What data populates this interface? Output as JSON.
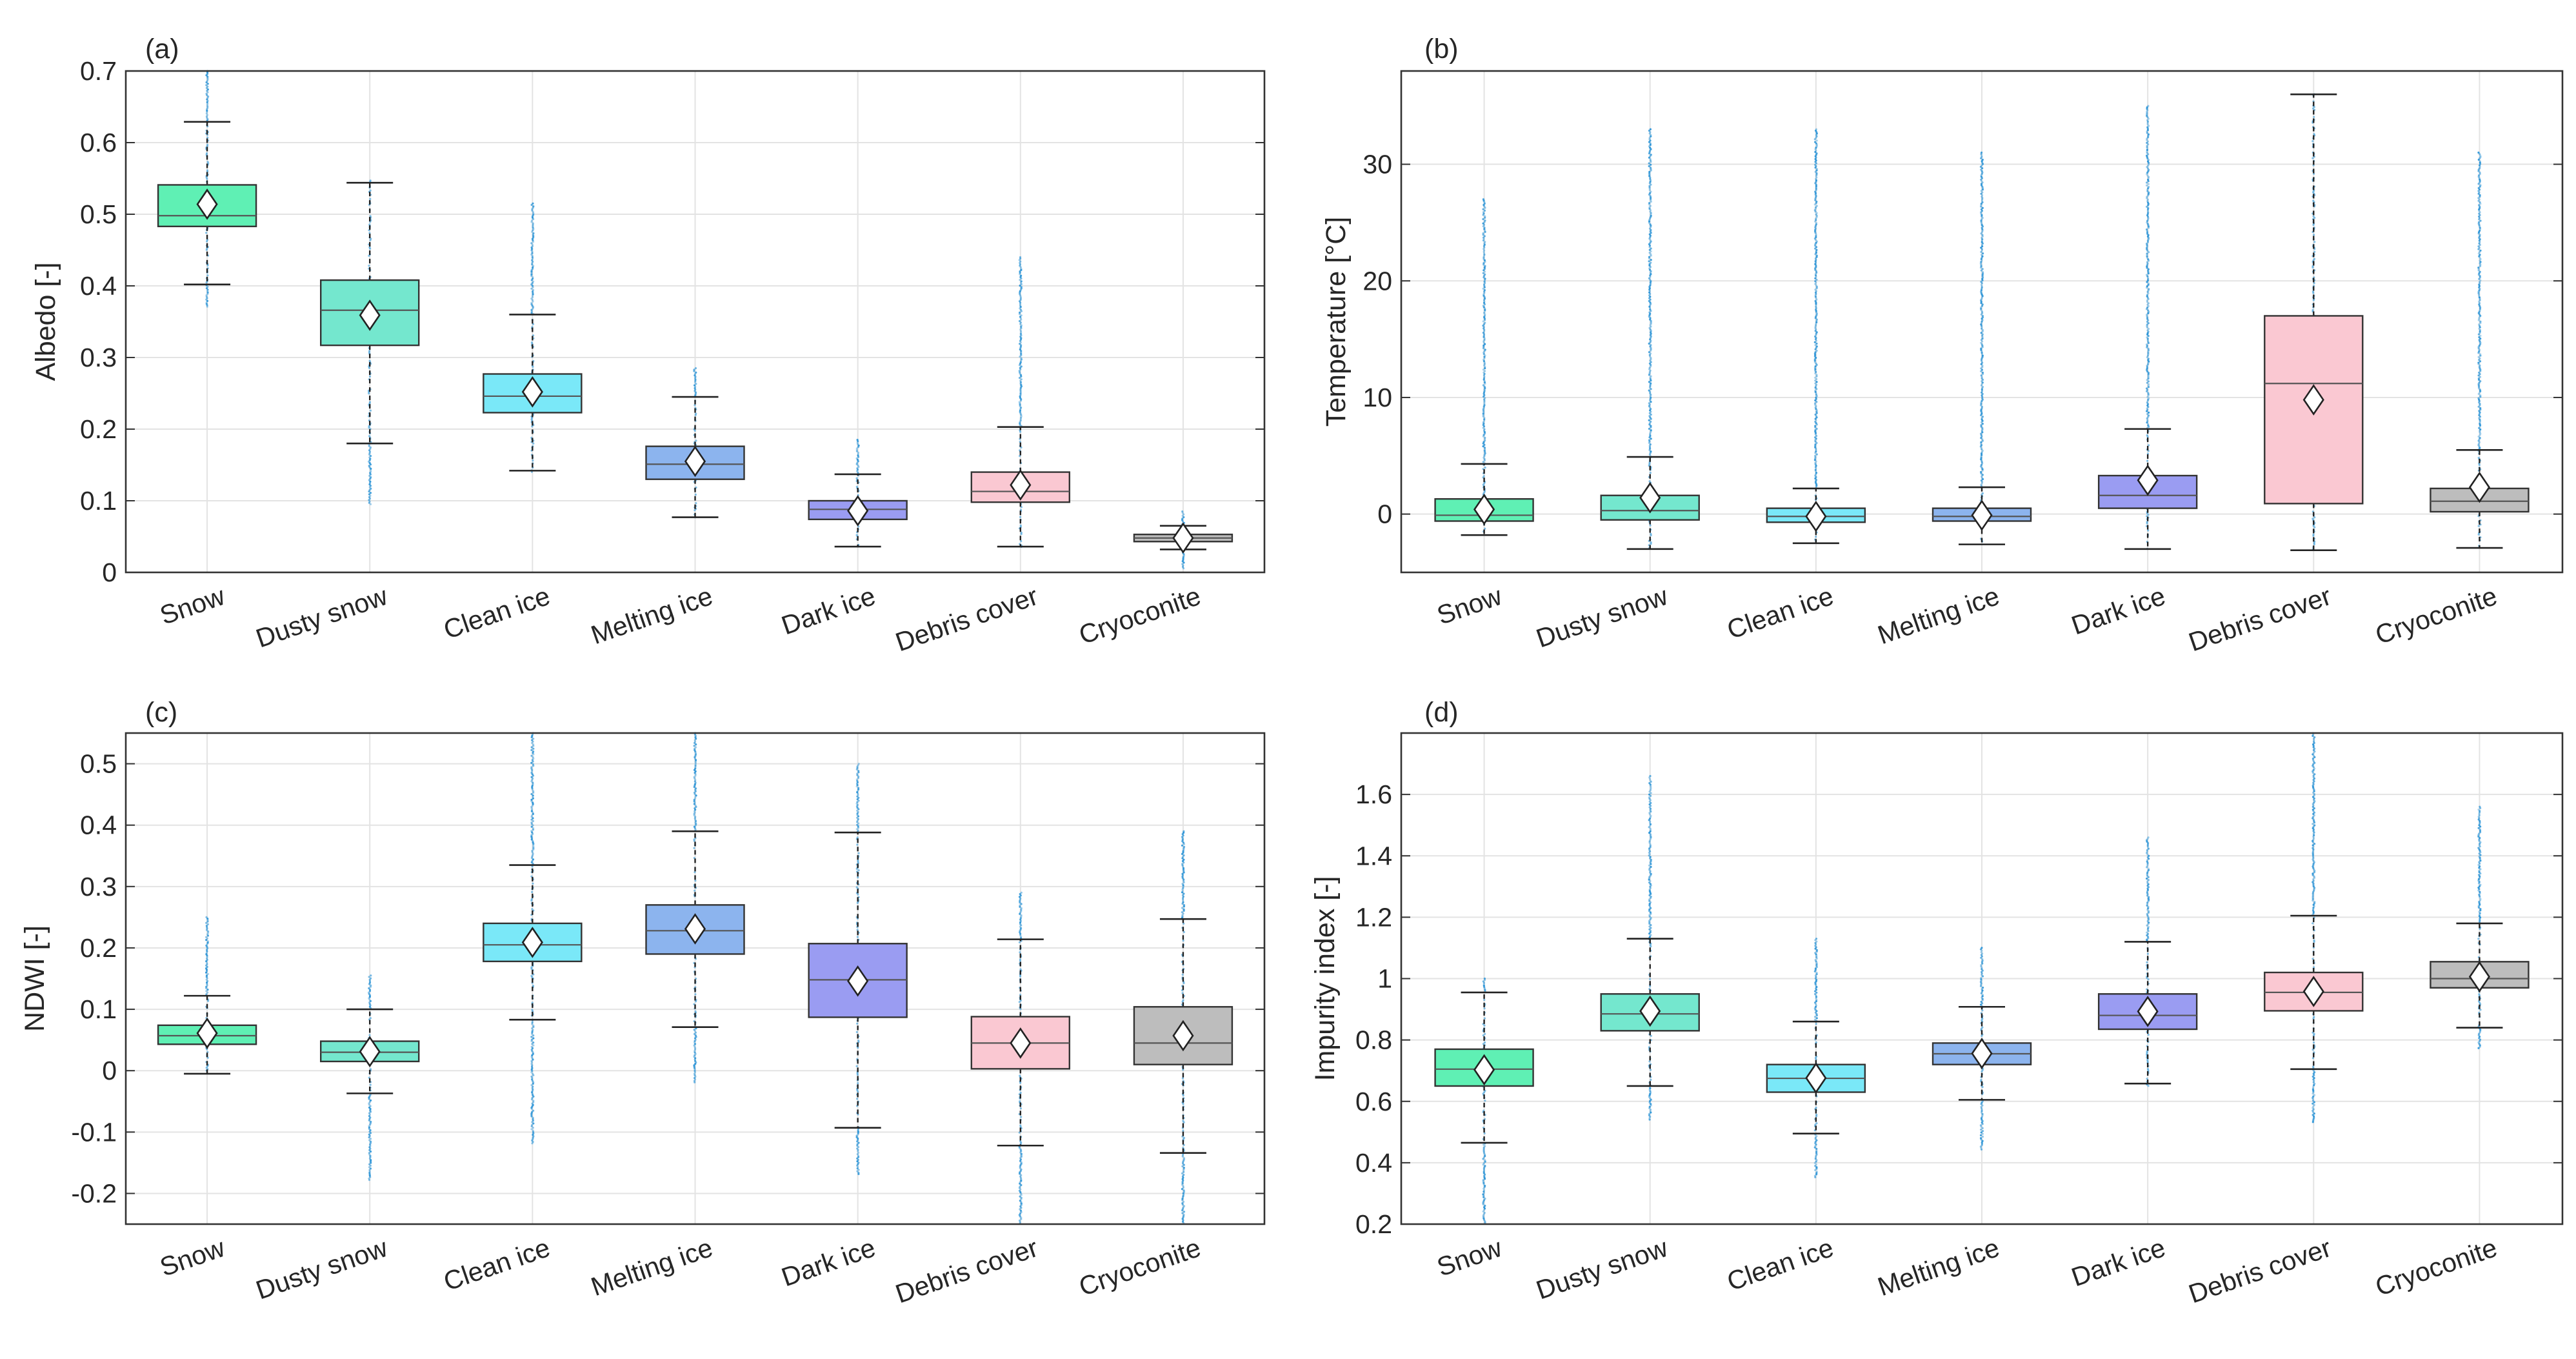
{
  "colors": {
    "Snow": "#5ff0b4",
    "Dusty snow": "#74e7ce",
    "Clean ice": "#7ae8f8",
    "Melting ice": "#8cb4ee",
    "Dark ice": "#9a9cf2",
    "Debris cover": "#fac8d2",
    "Cryoconite": "#bdbdbd",
    "outliers": "#1f8fd6",
    "grid": "#e3e3e3",
    "axes": "#333333"
  },
  "chart_data": [
    {
      "id": "a",
      "panel_label": "(a)",
      "type": "box",
      "categories": [
        "Snow",
        "Dusty snow",
        "Clean ice",
        "Melting ice",
        "Dark ice",
        "Debris cover",
        "Cryoconite"
      ],
      "ylabel": "Albedo [-]",
      "ylim": [
        0,
        0.7
      ],
      "yticks": [
        0,
        0.1,
        0.2,
        0.3,
        0.4,
        0.5,
        0.6,
        0.7
      ],
      "ytick_labels": [
        "0",
        "0.1",
        "0.2",
        "0.3",
        "0.4",
        "0.5",
        "0.6",
        "0.7"
      ],
      "boxes": [
        {
          "q1": 0.483,
          "median": 0.498,
          "q3": 0.541,
          "whisker_low": 0.402,
          "whisker_high": 0.629,
          "mean": 0.514,
          "outlier_low": 0.37,
          "outlier_high": 0.7
        },
        {
          "q1": 0.317,
          "median": 0.366,
          "q3": 0.408,
          "whisker_low": 0.18,
          "whisker_high": 0.544,
          "mean": 0.359,
          "outlier_low": 0.095,
          "outlier_high": 0.547
        },
        {
          "q1": 0.223,
          "median": 0.246,
          "q3": 0.277,
          "whisker_low": 0.142,
          "whisker_high": 0.36,
          "mean": 0.252,
          "outlier_low": 0.14,
          "outlier_high": 0.515
        },
        {
          "q1": 0.13,
          "median": 0.151,
          "q3": 0.176,
          "whisker_low": 0.077,
          "whisker_high": 0.245,
          "mean": 0.155,
          "outlier_low": 0.075,
          "outlier_high": 0.285
        },
        {
          "q1": 0.074,
          "median": 0.088,
          "q3": 0.1,
          "whisker_low": 0.036,
          "whisker_high": 0.137,
          "mean": 0.086,
          "outlier_low": 0.035,
          "outlier_high": 0.185
        },
        {
          "q1": 0.098,
          "median": 0.113,
          "q3": 0.14,
          "whisker_low": 0.036,
          "whisker_high": 0.203,
          "mean": 0.122,
          "outlier_low": 0.035,
          "outlier_high": 0.44
        },
        {
          "q1": 0.043,
          "median": 0.048,
          "q3": 0.053,
          "whisker_low": 0.032,
          "whisker_high": 0.065,
          "mean": 0.048,
          "outlier_low": 0.005,
          "outlier_high": 0.085
        }
      ]
    },
    {
      "id": "b",
      "panel_label": "(b)",
      "type": "box",
      "categories": [
        "Snow",
        "Dusty snow",
        "Clean ice",
        "Melting ice",
        "Dark ice",
        "Debris cover",
        "Cryoconite"
      ],
      "ylabel": "Temperature [°C]",
      "ylim": [
        -5,
        38
      ],
      "yticks": [
        0,
        10,
        20,
        30
      ],
      "ytick_labels": [
        "0",
        "10",
        "20",
        "30"
      ],
      "boxes": [
        {
          "q1": -0.6,
          "median": -0.1,
          "q3": 1.3,
          "whisker_low": -1.8,
          "whisker_high": 4.3,
          "mean": 0.4,
          "outlier_low": -1.8,
          "outlier_high": 27
        },
        {
          "q1": -0.5,
          "median": 0.3,
          "q3": 1.6,
          "whisker_low": -3.0,
          "whisker_high": 4.9,
          "mean": 1.4,
          "outlier_low": -3.0,
          "outlier_high": 33
        },
        {
          "q1": -0.7,
          "median": -0.2,
          "q3": 0.5,
          "whisker_low": -2.5,
          "whisker_high": 2.2,
          "mean": -0.2,
          "outlier_low": -2.5,
          "outlier_high": 33
        },
        {
          "q1": -0.6,
          "median": -0.2,
          "q3": 0.5,
          "whisker_low": -2.6,
          "whisker_high": 2.3,
          "mean": -0.1,
          "outlier_low": -2.6,
          "outlier_high": 31
        },
        {
          "q1": 0.5,
          "median": 1.6,
          "q3": 3.3,
          "whisker_low": -3.0,
          "whisker_high": 7.3,
          "mean": 2.9,
          "outlier_low": -3.0,
          "outlier_high": 35
        },
        {
          "q1": 0.9,
          "median": 11.2,
          "q3": 17.0,
          "whisker_low": -3.1,
          "whisker_high": 36.0,
          "mean": 9.8,
          "outlier_low": -3.1,
          "outlier_high": 36.0
        },
        {
          "q1": 0.2,
          "median": 1.1,
          "q3": 2.2,
          "whisker_low": -2.9,
          "whisker_high": 5.5,
          "mean": 2.3,
          "outlier_low": -2.9,
          "outlier_high": 31
        }
      ]
    },
    {
      "id": "c",
      "panel_label": "(c)",
      "type": "box",
      "categories": [
        "Snow",
        "Dusty snow",
        "Clean ice",
        "Melting ice",
        "Dark ice",
        "Debris cover",
        "Cryoconite"
      ],
      "ylabel": "NDWI [-]",
      "ylim": [
        -0.25,
        0.55
      ],
      "yticks": [
        -0.2,
        -0.1,
        0,
        0.1,
        0.2,
        0.3,
        0.4,
        0.5
      ],
      "ytick_labels": [
        "-0.2",
        "-0.1",
        "0",
        "0.1",
        "0.2",
        "0.3",
        "0.4",
        "0.5"
      ],
      "boxes": [
        {
          "q1": 0.043,
          "median": 0.057,
          "q3": 0.074,
          "whisker_low": -0.005,
          "whisker_high": 0.122,
          "mean": 0.061,
          "outlier_low": -0.005,
          "outlier_high": 0.25
        },
        {
          "q1": 0.015,
          "median": 0.03,
          "q3": 0.048,
          "whisker_low": -0.037,
          "whisker_high": 0.1,
          "mean": 0.031,
          "outlier_low": -0.18,
          "outlier_high": 0.155
        },
        {
          "q1": 0.178,
          "median": 0.205,
          "q3": 0.24,
          "whisker_low": 0.083,
          "whisker_high": 0.335,
          "mean": 0.209,
          "outlier_low": -0.12,
          "outlier_high": 0.55
        },
        {
          "q1": 0.19,
          "median": 0.228,
          "q3": 0.27,
          "whisker_low": 0.071,
          "whisker_high": 0.39,
          "mean": 0.231,
          "outlier_low": -0.02,
          "outlier_high": 0.55
        },
        {
          "q1": 0.087,
          "median": 0.148,
          "q3": 0.207,
          "whisker_low": -0.093,
          "whisker_high": 0.388,
          "mean": 0.146,
          "outlier_low": -0.17,
          "outlier_high": 0.5
        },
        {
          "q1": 0.003,
          "median": 0.045,
          "q3": 0.088,
          "whisker_low": -0.122,
          "whisker_high": 0.214,
          "mean": 0.045,
          "outlier_low": -0.25,
          "outlier_high": 0.29
        },
        {
          "q1": 0.01,
          "median": 0.045,
          "q3": 0.104,
          "whisker_low": -0.134,
          "whisker_high": 0.247,
          "mean": 0.057,
          "outlier_low": -0.25,
          "outlier_high": 0.39
        }
      ]
    },
    {
      "id": "d",
      "panel_label": "(d)",
      "type": "box",
      "categories": [
        "Snow",
        "Dusty snow",
        "Clean ice",
        "Melting ice",
        "Dark ice",
        "Debris cover",
        "Cryoconite"
      ],
      "ylabel": "Impurity index [-]",
      "ylim": [
        0.2,
        1.8
      ],
      "yticks": [
        0.2,
        0.4,
        0.6,
        0.8,
        1,
        1.2,
        1.4,
        1.6
      ],
      "ytick_labels": [
        "0.2",
        "0.4",
        "0.6",
        "0.8",
        "1",
        "1.2",
        "1.4",
        "1.6"
      ],
      "boxes": [
        {
          "q1": 0.65,
          "median": 0.705,
          "q3": 0.77,
          "whisker_low": 0.465,
          "whisker_high": 0.955,
          "mean": 0.703,
          "outlier_low": 0.2,
          "outlier_high": 1.0
        },
        {
          "q1": 0.83,
          "median": 0.885,
          "q3": 0.95,
          "whisker_low": 0.65,
          "whisker_high": 1.13,
          "mean": 0.894,
          "outlier_low": 0.54,
          "outlier_high": 1.66
        },
        {
          "q1": 0.63,
          "median": 0.675,
          "q3": 0.72,
          "whisker_low": 0.495,
          "whisker_high": 0.86,
          "mean": 0.676,
          "outlier_low": 0.35,
          "outlier_high": 1.13
        },
        {
          "q1": 0.72,
          "median": 0.755,
          "q3": 0.79,
          "whisker_low": 0.605,
          "whisker_high": 0.908,
          "mean": 0.756,
          "outlier_low": 0.44,
          "outlier_high": 1.1
        },
        {
          "q1": 0.835,
          "median": 0.88,
          "q3": 0.95,
          "whisker_low": 0.658,
          "whisker_high": 1.12,
          "mean": 0.893,
          "outlier_low": 0.65,
          "outlier_high": 1.46
        },
        {
          "q1": 0.895,
          "median": 0.955,
          "q3": 1.02,
          "whisker_low": 0.705,
          "whisker_high": 1.205,
          "mean": 0.958,
          "outlier_low": 0.53,
          "outlier_high": 1.8
        },
        {
          "q1": 0.97,
          "median": 1.0,
          "q3": 1.055,
          "whisker_low": 0.84,
          "whisker_high": 1.18,
          "mean": 1.006,
          "outlier_low": 0.77,
          "outlier_high": 1.56
        }
      ]
    }
  ]
}
